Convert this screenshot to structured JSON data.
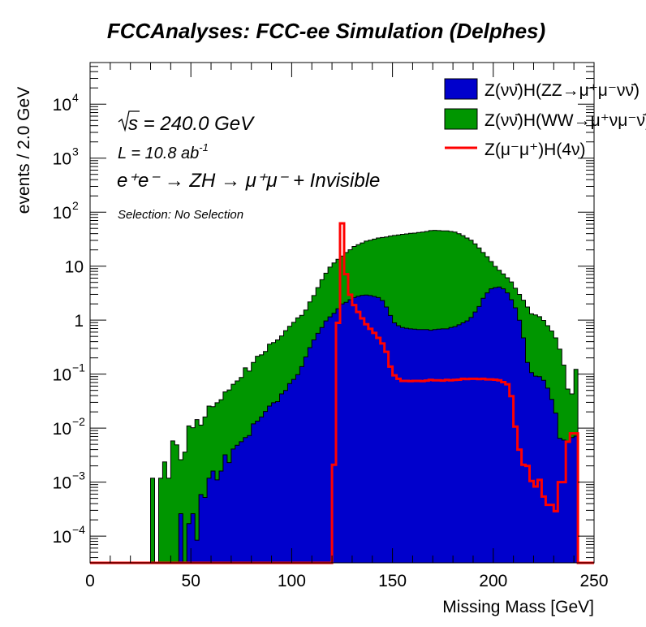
{
  "chart_data": {
    "type": "histogram-stacked-log",
    "title": "FCCAnalyses: FCC-ee Simulation (Delphes)",
    "xlabel": "Missing Mass [GeV]",
    "ylabel": "events / 2.0 GeV",
    "xlim": [
      0,
      250
    ],
    "ylim": [
      3.2e-05,
      59000
    ],
    "yscale": "log",
    "bin_width": 2.0,
    "x_ticks": [
      "0",
      "50",
      "100",
      "150",
      "200",
      "250"
    ],
    "x_tick_values": [
      0,
      50,
      100,
      150,
      200,
      250
    ],
    "y_ticks": [
      {
        "base": "10",
        "exp": "4",
        "value": 10000
      },
      {
        "base": "10",
        "exp": "3",
        "value": 1000
      },
      {
        "base": "10",
        "exp": "2",
        "value": 100
      },
      {
        "base": "10",
        "exp": "",
        "value": 10
      },
      {
        "base": "1",
        "exp": "",
        "value": 1
      },
      {
        "base": "10",
        "exp": "−1",
        "value": 0.1
      },
      {
        "base": "10",
        "exp": "−2",
        "value": 0.01
      },
      {
        "base": "10",
        "exp": "−3",
        "value": 0.001
      },
      {
        "base": "10",
        "exp": "−4",
        "value": 0.0001
      }
    ],
    "annotations": {
      "sqrt_s": "s = 240.0 GeV",
      "lumi": "L = 10.8 ab",
      "lumi_exp": "-1",
      "process": "e⁺e⁻ → ZH → μ⁺μ⁻ + Invisible",
      "selection": "Selection: No Selection"
    },
    "legend_position": "top-right",
    "series": [
      {
        "name": "Z(νν̄)H(WW→μ⁺νμ⁻ν̄)",
        "color": "#009600",
        "style": "filled",
        "stacked_cumulative": true,
        "values": [
          0,
          0,
          0,
          0,
          0,
          0,
          0,
          0,
          0,
          0,
          0,
          0,
          0,
          0,
          0,
          0.00118,
          0,
          0.00118,
          0.00236,
          0.00118,
          0.0058,
          0.0049,
          0.0026,
          0.0036,
          0.011,
          0.0102,
          0.0144,
          0.0114,
          0.0161,
          0.0256,
          0.025,
          0.0295,
          0.0337,
          0.047,
          0.051,
          0.065,
          0.075,
          0.087,
          0.131,
          0.114,
          0.165,
          0.215,
          0.228,
          0.263,
          0.36,
          0.385,
          0.43,
          0.51,
          0.64,
          0.77,
          0.91,
          1.1,
          1.23,
          1.54,
          2.18,
          2.85,
          4.0,
          5.6,
          7.4,
          9.6,
          11.5,
          13.4,
          15.4,
          17.9,
          20.1,
          23.1,
          25.0,
          26.9,
          29.1,
          30.3,
          31.7,
          33.2,
          34.0,
          34.8,
          36.1,
          37.0,
          37.9,
          38.8,
          39.6,
          40.5,
          40.9,
          41.9,
          42.8,
          43.9,
          45.5,
          46,
          45.5,
          45,
          45,
          43.9,
          42.8,
          39.9,
          36.8,
          33.2,
          30.3,
          25.9,
          21.8,
          17.9,
          15.0,
          12.2,
          9.9,
          8.4,
          7.2,
          6.1,
          5.1,
          3.9,
          3.0,
          2.34,
          1.75,
          1.31,
          1.25,
          1.16,
          0.99,
          0.79,
          0.63,
          0.47,
          0.29,
          0.147,
          0.053,
          0.043,
          0.123,
          0,
          0,
          0,
          0
        ]
      },
      {
        "name": "Z(νν̄)H(ZZ→μ⁺μ⁻νν̄)",
        "color": "#0000cc",
        "style": "filled",
        "values": [
          0,
          0,
          0,
          0,
          0,
          0,
          0,
          0,
          0,
          0,
          0,
          0,
          0,
          0,
          0,
          0,
          0,
          0,
          0,
          0,
          0,
          0,
          0.00026,
          0,
          0.00017,
          0.00026,
          8.4e-05,
          0.00059,
          0.00052,
          0.00118,
          0.0016,
          0.0011,
          0.0016,
          0.0032,
          0.0023,
          0.0041,
          0.0048,
          0.0056,
          0.0067,
          0.0073,
          0.012,
          0.0135,
          0.0161,
          0.0204,
          0.0256,
          0.0295,
          0.031,
          0.043,
          0.05,
          0.067,
          0.08,
          0.098,
          0.138,
          0.208,
          0.31,
          0.43,
          0.57,
          0.73,
          0.97,
          1.15,
          1.34,
          1.63,
          2.0,
          2.13,
          2.39,
          2.62,
          2.78,
          2.88,
          2.92,
          2.85,
          2.75,
          2.62,
          2.31,
          1.75,
          1.22,
          0.89,
          0.79,
          0.73,
          0.71,
          0.69,
          0.68,
          0.67,
          0.67,
          0.67,
          0.65,
          0.67,
          0.68,
          0.69,
          0.69,
          0.73,
          0.76,
          0.82,
          0.89,
          0.97,
          1.12,
          1.42,
          1.79,
          2.54,
          3.2,
          3.8,
          4.0,
          4.1,
          3.8,
          3.2,
          2.39,
          1.69,
          1.0,
          0.47,
          0.165,
          0.107,
          0.092,
          0.09,
          0.077,
          0.055,
          0.034,
          0.019,
          0.0065,
          0.006,
          0.0054,
          0.0067,
          0.0071,
          0,
          0,
          0,
          0
        ]
      },
      {
        "name": "Z(μ⁻μ⁺)H(4ν)",
        "color": "#ff0000",
        "style": "line",
        "values": [
          0,
          0,
          0,
          0,
          0,
          0,
          0,
          0,
          0,
          0,
          0,
          0,
          0,
          0,
          0,
          0,
          0,
          0,
          0,
          0,
          0,
          0,
          0,
          0,
          0,
          0,
          0,
          0,
          0,
          0,
          0,
          0,
          0,
          0,
          0,
          0,
          0,
          0,
          0,
          0,
          0,
          0,
          0,
          0,
          0,
          0,
          0,
          0,
          0,
          0,
          0,
          0,
          0,
          0,
          0,
          0,
          0,
          0,
          0,
          0,
          0.0021,
          0.89,
          62,
          7.1,
          2.95,
          1.9,
          1.42,
          1.08,
          0.84,
          0.69,
          0.58,
          0.47,
          0.37,
          0.26,
          0.138,
          0.095,
          0.082,
          0.075,
          0.075,
          0.074,
          0.075,
          0.075,
          0.074,
          0.076,
          0.078,
          0.077,
          0.077,
          0.076,
          0.078,
          0.077,
          0.078,
          0.079,
          0.082,
          0.081,
          0.082,
          0.082,
          0.081,
          0.082,
          0.08,
          0.08,
          0.079,
          0.077,
          0.071,
          0.065,
          0.039,
          0.0107,
          0.004,
          0.0021,
          0.002,
          0.00105,
          0.00083,
          0.0011,
          0.00054,
          0.00038,
          0.00038,
          0.00029,
          0.001,
          0.001,
          0.0056,
          0.008,
          0.008,
          0,
          0,
          0,
          0
        ]
      }
    ],
    "legend": [
      {
        "label": "Z(νν̄)H(ZZ→μ⁺μ⁻νν̄)",
        "color": "#0000cc",
        "kind": "box"
      },
      {
        "label": "Z(νν̄)H(WW→μ⁺νμ⁻ν̄)",
        "color": "#009600",
        "kind": "box"
      },
      {
        "label": "Z(μ⁻μ⁺)H(4ν)",
        "color": "#ff0000",
        "kind": "line"
      }
    ]
  }
}
